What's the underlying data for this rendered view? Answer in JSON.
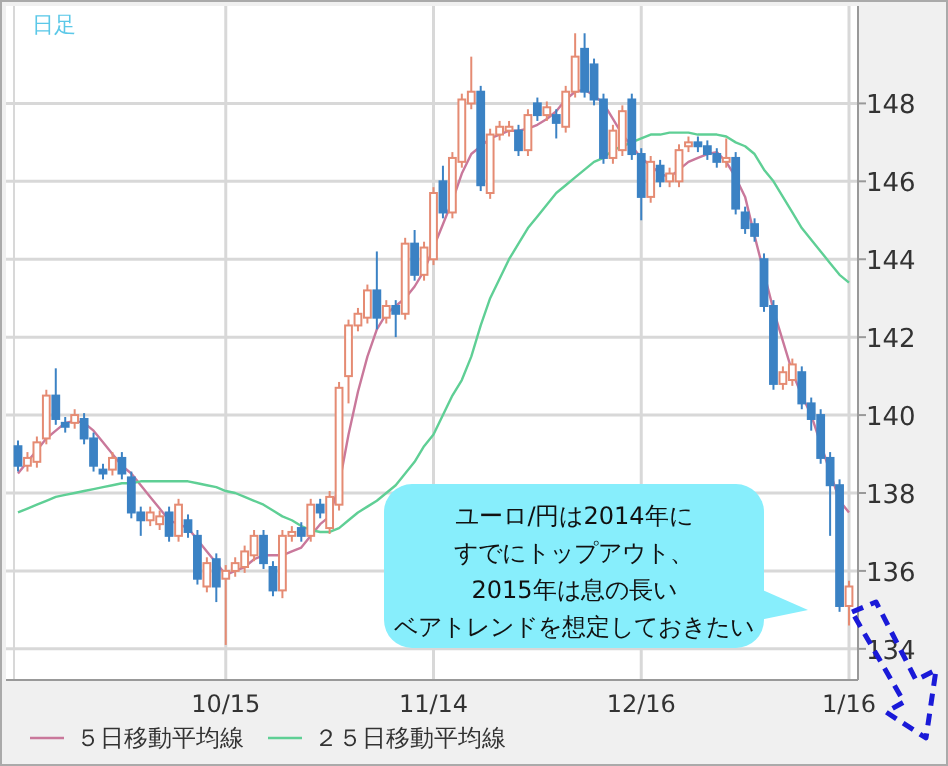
{
  "chart_data": {
    "type": "candlestick",
    "title": "日足",
    "categories": [
      null,
      null,
      null,
      null,
      null,
      null,
      null,
      null,
      null,
      null,
      null,
      null,
      null,
      null,
      null,
      null,
      null,
      null,
      null,
      null,
      null,
      null,
      "10/15",
      null,
      null,
      null,
      null,
      null,
      null,
      null,
      null,
      null,
      null,
      null,
      null,
      null,
      null,
      null,
      null,
      null,
      null,
      null,
      null,
      null,
      "11/14",
      null,
      null,
      null,
      null,
      null,
      null,
      null,
      null,
      null,
      null,
      null,
      null,
      null,
      null,
      null,
      null,
      null,
      null,
      null,
      null,
      null,
      "12/16",
      null,
      null,
      null,
      null,
      null,
      null,
      null,
      null,
      null,
      null,
      null,
      null,
      null,
      null,
      null,
      null,
      null,
      null,
      null,
      null,
      null,
      "1/16"
    ],
    "ohlc": [
      [
        139.2,
        139.35,
        138.55,
        138.7
      ],
      [
        138.7,
        139.05,
        138.55,
        138.9
      ],
      [
        138.8,
        139.45,
        138.65,
        139.3
      ],
      [
        139.4,
        140.65,
        139.25,
        140.5
      ],
      [
        140.5,
        141.2,
        139.75,
        139.9
      ],
      [
        139.8,
        139.95,
        139.55,
        139.7
      ],
      [
        139.8,
        140.15,
        139.65,
        140.0
      ],
      [
        139.9,
        140.05,
        139.25,
        139.4
      ],
      [
        139.4,
        139.55,
        138.55,
        138.7
      ],
      [
        138.6,
        138.75,
        138.35,
        138.5
      ],
      [
        138.6,
        139.05,
        138.45,
        138.9
      ],
      [
        138.9,
        139.05,
        138.35,
        138.5
      ],
      [
        138.4,
        138.55,
        137.35,
        137.5
      ],
      [
        137.5,
        137.65,
        136.9,
        137.3
      ],
      [
        137.3,
        137.65,
        137.15,
        137.5
      ],
      [
        137.2,
        137.55,
        137.05,
        137.4
      ],
      [
        137.5,
        137.65,
        136.75,
        136.9
      ],
      [
        136.9,
        137.85,
        136.75,
        137.7
      ],
      [
        137.3,
        137.45,
        136.85,
        137.0
      ],
      [
        136.9,
        137.05,
        135.65,
        135.8
      ],
      [
        135.6,
        136.35,
        135.45,
        136.2
      ],
      [
        136.3,
        136.45,
        135.2,
        135.6
      ],
      [
        135.8,
        136.15,
        134.1,
        136.0
      ],
      [
        136.0,
        136.35,
        135.85,
        136.2
      ],
      [
        136.1,
        136.65,
        135.95,
        136.5
      ],
      [
        136.4,
        137.05,
        136.25,
        136.9
      ],
      [
        136.9,
        137.05,
        136.05,
        136.2
      ],
      [
        136.1,
        136.25,
        135.35,
        135.5
      ],
      [
        135.5,
        137.05,
        135.3,
        136.9
      ],
      [
        136.9,
        137.15,
        136.75,
        137.0
      ],
      [
        137.1,
        137.25,
        136.75,
        136.9
      ],
      [
        136.9,
        137.85,
        136.75,
        137.7
      ],
      [
        137.7,
        137.85,
        137.35,
        137.5
      ],
      [
        137.1,
        138.05,
        136.95,
        137.9
      ],
      [
        137.7,
        140.85,
        137.55,
        140.7
      ],
      [
        141.0,
        142.45,
        140.3,
        142.3
      ],
      [
        142.3,
        142.75,
        142.15,
        142.6
      ],
      [
        142.5,
        143.35,
        142.35,
        143.2
      ],
      [
        143.2,
        144.2,
        142.2,
        142.5
      ],
      [
        142.5,
        142.95,
        142.35,
        142.8
      ],
      [
        142.8,
        142.95,
        142.0,
        142.6
      ],
      [
        142.6,
        144.55,
        142.45,
        144.4
      ],
      [
        144.4,
        144.75,
        143.45,
        143.6
      ],
      [
        143.6,
        144.45,
        143.45,
        144.3
      ],
      [
        144.0,
        145.85,
        143.85,
        145.7
      ],
      [
        146.0,
        146.4,
        145.05,
        145.2
      ],
      [
        145.2,
        146.75,
        145.05,
        146.6
      ],
      [
        146.5,
        148.25,
        146.35,
        148.1
      ],
      [
        148.0,
        149.2,
        147.85,
        148.3
      ],
      [
        148.3,
        148.45,
        145.75,
        145.9
      ],
      [
        145.7,
        147.35,
        145.55,
        147.2
      ],
      [
        147.2,
        147.55,
        147.05,
        147.4
      ],
      [
        147.3,
        147.55,
        147.15,
        147.4
      ],
      [
        147.3,
        147.45,
        146.65,
        146.8
      ],
      [
        146.8,
        147.85,
        146.65,
        147.7
      ],
      [
        148.0,
        148.15,
        147.55,
        147.7
      ],
      [
        147.7,
        148.05,
        147.55,
        147.9
      ],
      [
        147.7,
        147.85,
        147.1,
        147.5
      ],
      [
        147.4,
        148.45,
        147.25,
        148.3
      ],
      [
        148.3,
        149.8,
        148.15,
        149.2
      ],
      [
        149.4,
        149.8,
        148.15,
        148.3
      ],
      [
        149.0,
        149.15,
        147.95,
        148.1
      ],
      [
        148.1,
        148.25,
        146.45,
        146.6
      ],
      [
        146.6,
        147.45,
        146.45,
        147.3
      ],
      [
        146.8,
        147.95,
        146.65,
        147.8
      ],
      [
        148.1,
        148.25,
        146.55,
        146.7
      ],
      [
        146.7,
        146.85,
        145.0,
        145.6
      ],
      [
        145.6,
        146.65,
        145.45,
        146.5
      ],
      [
        146.4,
        146.55,
        145.85,
        146.0
      ],
      [
        146.0,
        146.35,
        145.85,
        146.2
      ],
      [
        146.0,
        146.95,
        145.85,
        146.8
      ],
      [
        146.9,
        147.15,
        146.75,
        147.0
      ],
      [
        147.0,
        147.15,
        146.75,
        146.9
      ],
      [
        146.9,
        147.05,
        146.55,
        146.7
      ],
      [
        146.7,
        146.85,
        146.35,
        146.5
      ],
      [
        146.5,
        147.1,
        146.35,
        146.6
      ],
      [
        146.6,
        146.75,
        145.15,
        145.3
      ],
      [
        145.2,
        145.35,
        144.65,
        144.8
      ],
      [
        144.9,
        145.05,
        144.45,
        144.6
      ],
      [
        144.0,
        144.15,
        142.65,
        142.8
      ],
      [
        142.8,
        142.95,
        140.65,
        140.8
      ],
      [
        140.8,
        141.25,
        140.65,
        141.1
      ],
      [
        140.9,
        141.45,
        140.75,
        141.3
      ],
      [
        141.1,
        141.25,
        140.15,
        140.3
      ],
      [
        140.3,
        140.45,
        139.6,
        139.9
      ],
      [
        140.0,
        140.15,
        138.75,
        138.9
      ],
      [
        138.9,
        139.05,
        136.9,
        138.2
      ],
      [
        138.2,
        138.35,
        134.95,
        135.1
      ],
      [
        135.1,
        135.75,
        134.6,
        135.6
      ]
    ],
    "colors": [
      "#3b82c4",
      "#e58b73",
      "#e58b73",
      "#e58b73",
      "#3b82c4",
      "#3b82c4",
      "#e58b73",
      "#3b82c4",
      "#3b82c4",
      "#3b82c4",
      "#e58b73",
      "#3b82c4",
      "#3b82c4",
      "#3b82c4",
      "#e58b73",
      "#e58b73",
      "#3b82c4",
      "#e58b73",
      "#3b82c4",
      "#3b82c4",
      "#e58b73",
      "#3b82c4",
      "#e58b73",
      "#e58b73",
      "#e58b73",
      "#e58b73",
      "#3b82c4",
      "#3b82c4",
      "#e58b73",
      "#e58b73",
      "#3b82c4",
      "#e58b73",
      "#3b82c4",
      "#e58b73",
      "#e58b73",
      "#e58b73",
      "#e58b73",
      "#e58b73",
      "#3b82c4",
      "#e58b73",
      "#3b82c4",
      "#e58b73",
      "#3b82c4",
      "#e58b73",
      "#e58b73",
      "#3b82c4",
      "#e58b73",
      "#e58b73",
      "#e58b73",
      "#3b82c4",
      "#e58b73",
      "#e58b73",
      "#e58b73",
      "#3b82c4",
      "#e58b73",
      "#3b82c4",
      "#e58b73",
      "#3b82c4",
      "#e58b73",
      "#e58b73",
      "#3b82c4",
      "#3b82c4",
      "#3b82c4",
      "#e58b73",
      "#e58b73",
      "#3b82c4",
      "#3b82c4",
      "#e58b73",
      "#3b82c4",
      "#e58b73",
      "#e58b73",
      "#e58b73",
      "#3b82c4",
      "#3b82c4",
      "#3b82c4",
      "#e58b73",
      "#3b82c4",
      "#3b82c4",
      "#3b82c4",
      "#3b82c4",
      "#3b82c4",
      "#e58b73",
      "#e58b73",
      "#3b82c4",
      "#3b82c4",
      "#3b82c4",
      "#3b82c4",
      "#3b82c4",
      "#e58b73"
    ],
    "series": [
      {
        "type": "line",
        "name": "５日移動平均線",
        "color": "#c9789b",
        "values": [
          138.5,
          138.8,
          139.1,
          139.4,
          139.6,
          139.8,
          139.85,
          139.8,
          139.6,
          139.3,
          139.0,
          138.7,
          138.5,
          138.2,
          137.9,
          137.6,
          137.3,
          137.2,
          137.1,
          136.8,
          136.5,
          136.2,
          135.9,
          136.0,
          136.1,
          136.3,
          136.4,
          136.4,
          136.4,
          136.5,
          136.6,
          136.9,
          137.2,
          137.4,
          138.2,
          139.5,
          140.6,
          141.5,
          142.2,
          142.6,
          142.8,
          143.0,
          143.3,
          143.7,
          144.3,
          144.9,
          145.5,
          146.2,
          146.7,
          146.9,
          147.1,
          147.2,
          147.3,
          147.3,
          147.35,
          147.45,
          147.6,
          147.8,
          148.1,
          148.3,
          148.35,
          148.2,
          148.0,
          147.6,
          147.2,
          146.9,
          146.6,
          146.4,
          146.2,
          146.1,
          146.3,
          146.5,
          146.6,
          146.7,
          146.75,
          146.5,
          146.1,
          145.6,
          144.6,
          null,
          142.7,
          141.9,
          141.1,
          140.5,
          140.0,
          null,
          null,
          137.8,
          137.5
        ]
      },
      {
        "type": "line",
        "name": "２５日移動平均線",
        "color": "#5fcf95",
        "values": [
          137.5,
          137.6,
          137.7,
          137.8,
          137.9,
          137.95,
          138.0,
          138.05,
          138.1,
          138.15,
          138.2,
          138.25,
          138.25,
          138.3,
          138.3,
          138.3,
          138.3,
          138.3,
          138.3,
          138.25,
          138.2,
          138.15,
          138.05,
          138.0,
          137.9,
          137.8,
          137.7,
          137.55,
          137.4,
          137.3,
          137.15,
          137.05,
          137.0,
          137.0,
          137.1,
          137.3,
          137.5,
          137.65,
          137.8,
          138.0,
          138.2,
          138.5,
          138.8,
          139.2,
          139.5,
          140.0,
          140.5,
          140.9,
          141.5,
          142.3,
          143.0,
          143.5,
          144.0,
          144.4,
          144.8,
          145.1,
          145.4,
          145.7,
          145.9,
          146.1,
          146.3,
          146.5,
          146.6,
          146.8,
          null,
          147.0,
          147.1,
          147.2,
          147.2,
          147.25,
          147.25,
          147.25,
          147.2,
          147.2,
          147.2,
          147.15,
          147.0,
          146.9,
          146.7,
          146.3,
          146.0,
          145.6,
          145.2,
          144.8,
          144.5,
          144.2,
          143.9,
          143.6,
          143.4
        ]
      }
    ],
    "ylim": [
      133.2,
      150.5
    ],
    "yticks": [
      134,
      136,
      138,
      140,
      142,
      144,
      146,
      148
    ],
    "grid": true,
    "legend": "bottom",
    "annotations": [
      "ユーロ/円は2014年に",
      "すでにトップアウト、",
      "2015年は息の長い",
      "ベアトレンドを想定しておきたい"
    ]
  }
}
